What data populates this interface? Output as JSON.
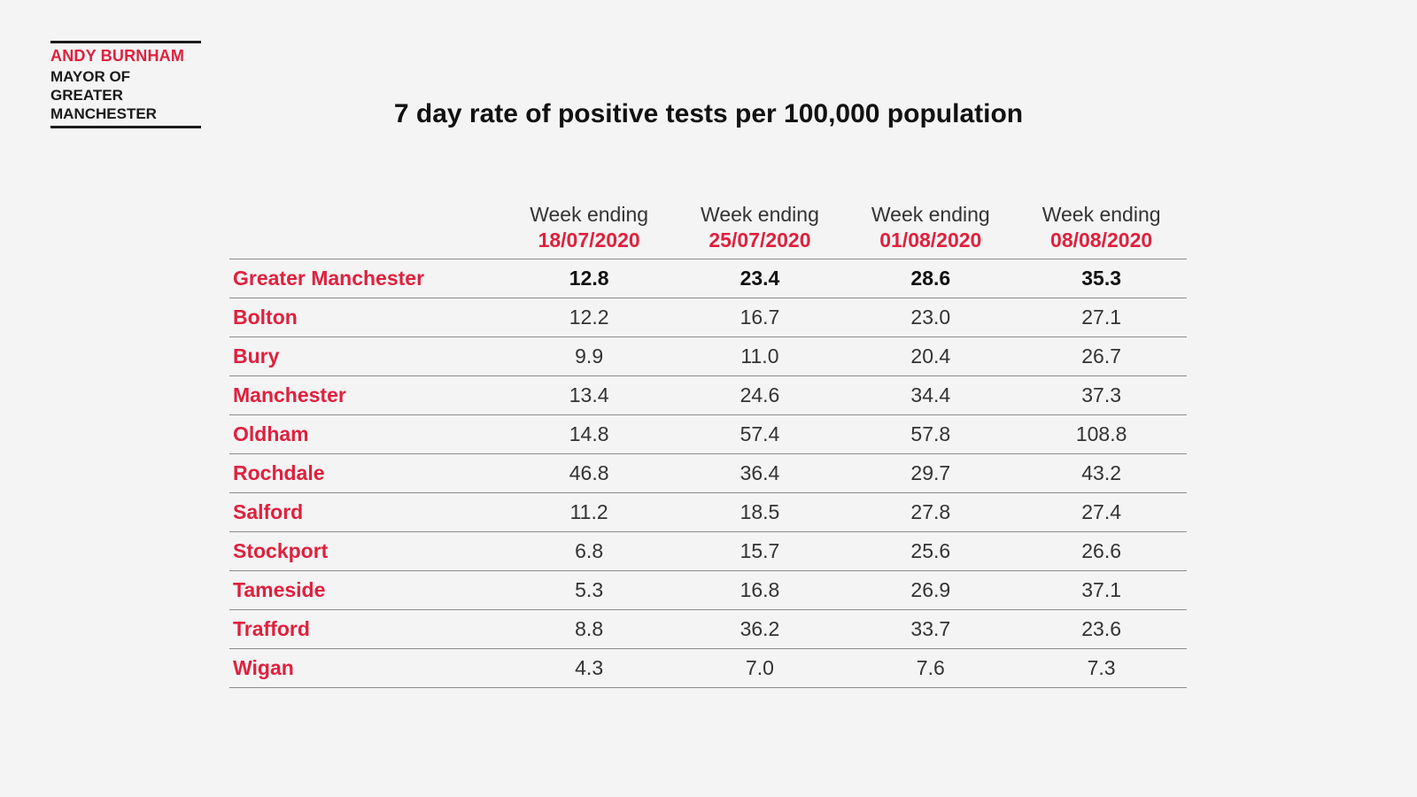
{
  "logo": {
    "name": "ANDY BURNHAM",
    "lines": [
      "MAYOR OF",
      "GREATER",
      "MANCHESTER"
    ],
    "accent_color": "#e0203d"
  },
  "chart_data": {
    "type": "table",
    "title": "7 day rate of positive tests per 100,000 population",
    "columns": [
      {
        "label": "Week ending",
        "date": "18/07/2020"
      },
      {
        "label": "Week ending",
        "date": "25/07/2020"
      },
      {
        "label": "Week ending",
        "date": "01/08/2020"
      },
      {
        "label": "Week ending",
        "date": "08/08/2020"
      }
    ],
    "rows": [
      {
        "name": "Greater Manchester",
        "values": [
          "12.8",
          "23.4",
          "28.6",
          "35.3"
        ],
        "bold": true
      },
      {
        "name": "Bolton",
        "values": [
          "12.2",
          "16.7",
          "23.0",
          "27.1"
        ]
      },
      {
        "name": "Bury",
        "values": [
          "9.9",
          "11.0",
          "20.4",
          "26.7"
        ]
      },
      {
        "name": "Manchester",
        "values": [
          "13.4",
          "24.6",
          "34.4",
          "37.3"
        ]
      },
      {
        "name": "Oldham",
        "values": [
          "14.8",
          "57.4",
          "57.8",
          "108.8"
        ]
      },
      {
        "name": "Rochdale",
        "values": [
          "46.8",
          "36.4",
          "29.7",
          "43.2"
        ]
      },
      {
        "name": "Salford",
        "values": [
          "11.2",
          "18.5",
          "27.8",
          "27.4"
        ]
      },
      {
        "name": "Stockport",
        "values": [
          "6.8",
          "15.7",
          "25.6",
          "26.6"
        ]
      },
      {
        "name": "Tameside",
        "values": [
          "5.3",
          "16.8",
          "26.9",
          "37.1"
        ]
      },
      {
        "name": "Trafford",
        "values": [
          "8.8",
          "36.2",
          "33.7",
          "23.6"
        ]
      },
      {
        "name": "Wigan",
        "values": [
          "4.3",
          "7.0",
          "7.6",
          "7.3"
        ]
      }
    ]
  }
}
